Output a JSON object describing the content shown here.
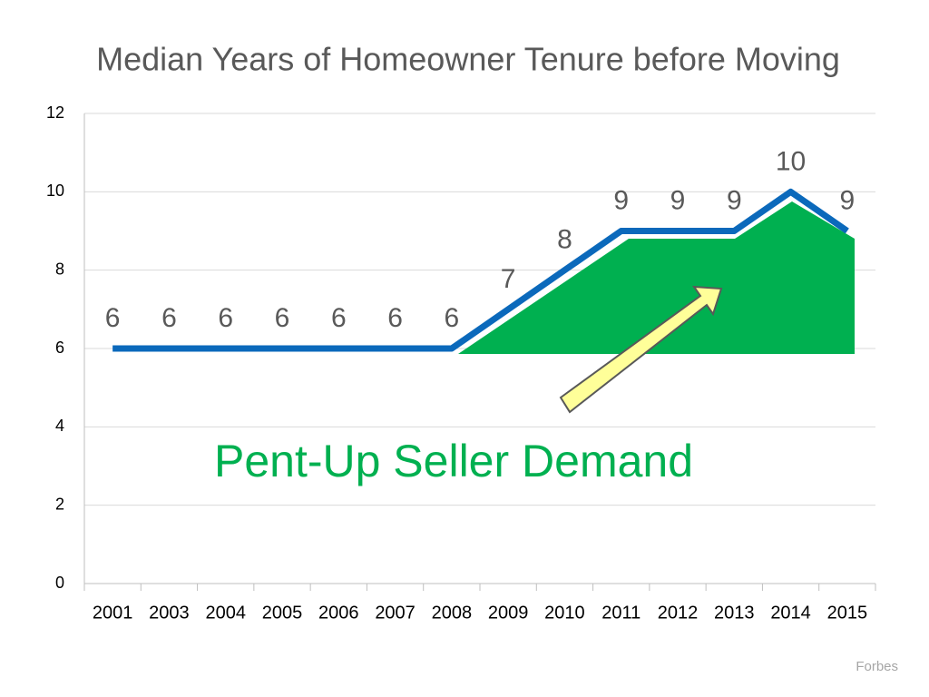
{
  "chart_data": {
    "type": "line",
    "title": "Median Years of Homeowner Tenure before Moving",
    "categories": [
      "2001",
      "2003",
      "2004",
      "2005",
      "2006",
      "2007",
      "2008",
      "2009",
      "2010",
      "2011",
      "2012",
      "2013",
      "2014",
      "2015"
    ],
    "values": [
      6,
      6,
      6,
      6,
      6,
      6,
      6,
      7,
      8,
      9,
      9,
      9,
      10,
      9
    ],
    "color": "#0b69bb",
    "ylim": [
      0,
      12
    ],
    "yticks": [
      0,
      2,
      4,
      6,
      8,
      10,
      12
    ],
    "grid": true,
    "annotation": "Pent-Up Seller Demand",
    "source": "Forbes"
  }
}
